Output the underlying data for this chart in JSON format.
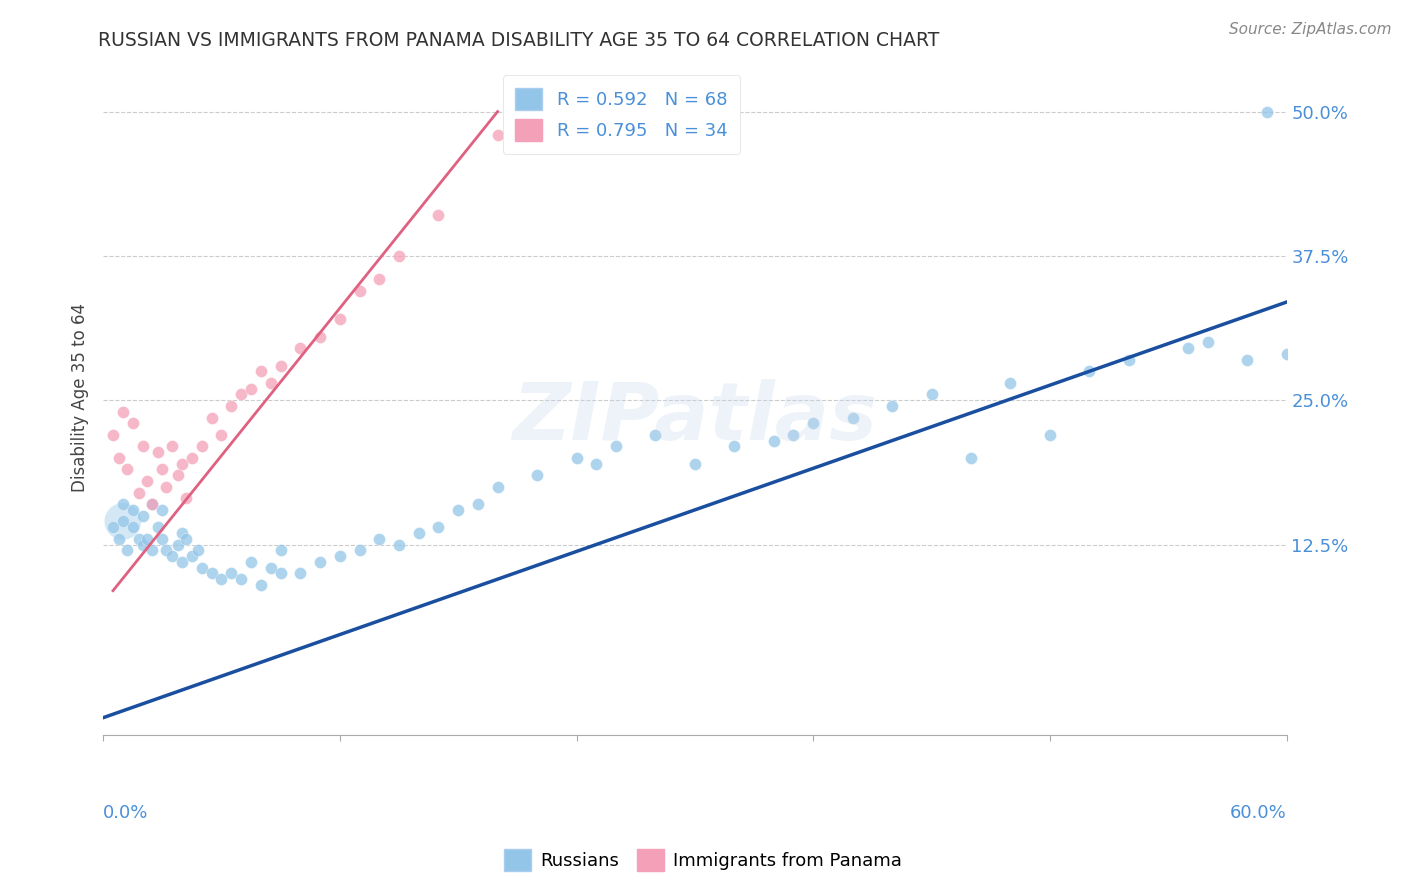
{
  "title": "RUSSIAN VS IMMIGRANTS FROM PANAMA DISABILITY AGE 35 TO 64 CORRELATION CHART",
  "source": "Source: ZipAtlas.com",
  "ylabel": "Disability Age 35 to 64",
  "xmin": 0.0,
  "xmax": 0.6,
  "ymin": -0.04,
  "ymax": 0.545,
  "legend_r_russian": "R = 0.592",
  "legend_n_russian": "N = 68",
  "legend_r_panama": "R = 0.795",
  "legend_n_panama": "N = 34",
  "color_russian": "#92C5E8",
  "color_panama": "#F4A0B8",
  "color_russian_line": "#1A4FA0",
  "color_panama_line": "#E06080",
  "watermark": "ZIPatlas",
  "russian_x": [
    0.005,
    0.008,
    0.01,
    0.01,
    0.012,
    0.015,
    0.015,
    0.018,
    0.02,
    0.02,
    0.022,
    0.025,
    0.025,
    0.028,
    0.03,
    0.03,
    0.032,
    0.035,
    0.038,
    0.04,
    0.04,
    0.042,
    0.045,
    0.048,
    0.05,
    0.055,
    0.06,
    0.065,
    0.07,
    0.075,
    0.08,
    0.085,
    0.09,
    0.09,
    0.1,
    0.11,
    0.12,
    0.13,
    0.14,
    0.15,
    0.16,
    0.17,
    0.18,
    0.19,
    0.2,
    0.22,
    0.24,
    0.25,
    0.26,
    0.28,
    0.3,
    0.32,
    0.34,
    0.35,
    0.36,
    0.38,
    0.4,
    0.42,
    0.44,
    0.46,
    0.48,
    0.5,
    0.52,
    0.55,
    0.56,
    0.58,
    0.59,
    0.6
  ],
  "russian_y": [
    0.14,
    0.13,
    0.145,
    0.16,
    0.12,
    0.14,
    0.155,
    0.13,
    0.125,
    0.15,
    0.13,
    0.12,
    0.16,
    0.14,
    0.13,
    0.155,
    0.12,
    0.115,
    0.125,
    0.11,
    0.135,
    0.13,
    0.115,
    0.12,
    0.105,
    0.1,
    0.095,
    0.1,
    0.095,
    0.11,
    0.09,
    0.105,
    0.1,
    0.12,
    0.1,
    0.11,
    0.115,
    0.12,
    0.13,
    0.125,
    0.135,
    0.14,
    0.155,
    0.16,
    0.175,
    0.185,
    0.2,
    0.195,
    0.21,
    0.22,
    0.195,
    0.21,
    0.215,
    0.22,
    0.23,
    0.235,
    0.245,
    0.255,
    0.2,
    0.265,
    0.22,
    0.275,
    0.285,
    0.295,
    0.3,
    0.285,
    0.5,
    0.29
  ],
  "panama_x": [
    0.005,
    0.008,
    0.01,
    0.012,
    0.015,
    0.018,
    0.02,
    0.022,
    0.025,
    0.028,
    0.03,
    0.032,
    0.035,
    0.038,
    0.04,
    0.042,
    0.045,
    0.05,
    0.055,
    0.06,
    0.065,
    0.07,
    0.075,
    0.08,
    0.085,
    0.09,
    0.1,
    0.11,
    0.12,
    0.13,
    0.14,
    0.15,
    0.17,
    0.2
  ],
  "panama_y": [
    0.22,
    0.2,
    0.24,
    0.19,
    0.23,
    0.17,
    0.21,
    0.18,
    0.16,
    0.205,
    0.19,
    0.175,
    0.21,
    0.185,
    0.195,
    0.165,
    0.2,
    0.21,
    0.235,
    0.22,
    0.245,
    0.255,
    0.26,
    0.275,
    0.265,
    0.28,
    0.295,
    0.305,
    0.32,
    0.345,
    0.355,
    0.375,
    0.41,
    0.48
  ],
  "russian_line_x": [
    0.0,
    0.6
  ],
  "russian_line_y": [
    -0.025,
    0.335
  ],
  "panama_line_x": [
    0.005,
    0.2
  ],
  "panama_line_y": [
    0.085,
    0.5
  ]
}
